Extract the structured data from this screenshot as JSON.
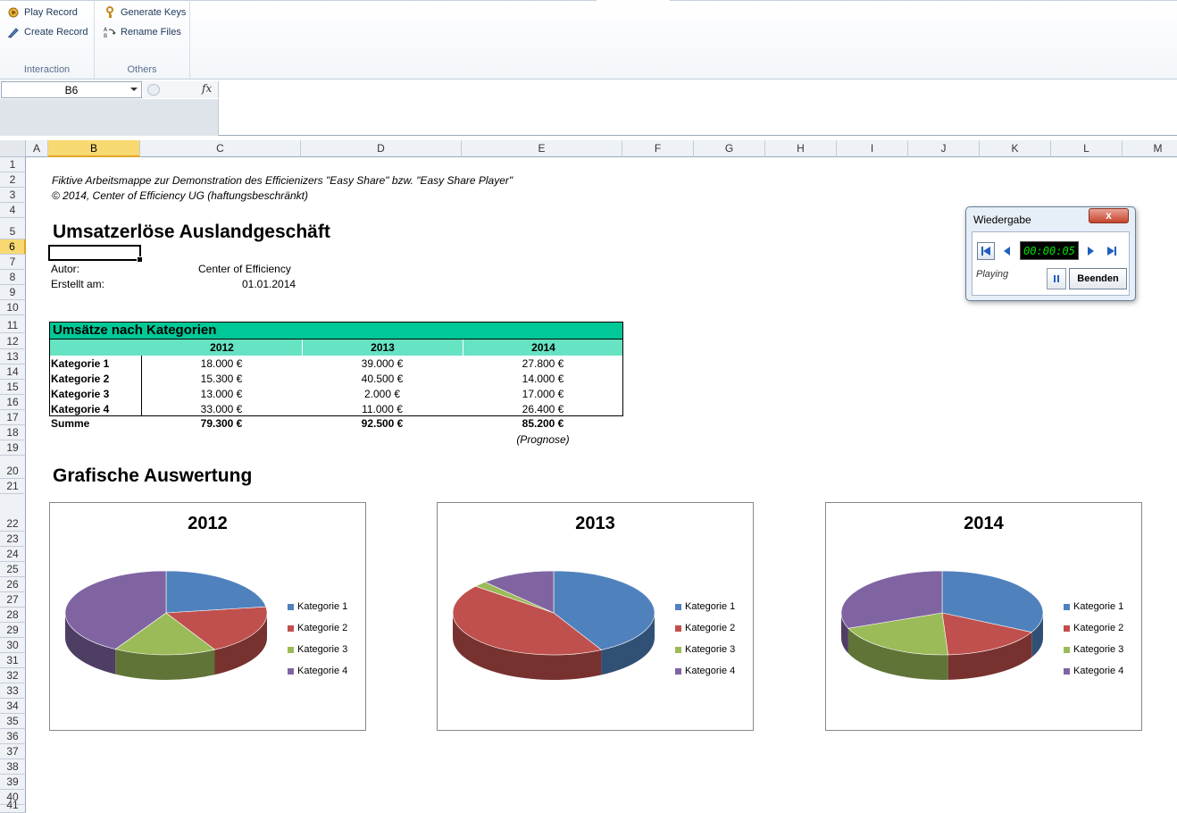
{
  "ribbon": {
    "groups": [
      {
        "label": "Interaction",
        "buttons": [
          {
            "label": "Play Record",
            "icon": "play-record-icon"
          },
          {
            "label": "Create Record",
            "icon": "create-record-icon"
          }
        ]
      },
      {
        "label": "Others",
        "buttons": [
          {
            "label": "Generate Keys",
            "icon": "key-icon"
          },
          {
            "label": "Rename Files",
            "icon": "rename-icon"
          }
        ]
      }
    ]
  },
  "formula_bar": {
    "name_box": "B6",
    "fx": "fx",
    "formula": ""
  },
  "columns": [
    "A",
    "B",
    "C",
    "D",
    "E",
    "F",
    "G",
    "H",
    "I",
    "J",
    "K",
    "L",
    "M"
  ],
  "selected_column": "B",
  "rows": [
    "1",
    "2",
    "3",
    "4",
    "5",
    "6",
    "7",
    "8",
    "9",
    "10",
    "11",
    "12",
    "13",
    "14",
    "15",
    "16",
    "17",
    "18",
    "19",
    "20",
    "21",
    "22",
    "23",
    "24",
    "25",
    "26",
    "27",
    "28",
    "29",
    "30",
    "31",
    "32",
    "33",
    "34",
    "35",
    "36",
    "37",
    "38",
    "39",
    "40",
    "41"
  ],
  "selected_row": "6",
  "sheet": {
    "intro_line1": "Fiktive Arbeitsmappe zur Demonstration des Efficienizers \"Easy Share\" bzw. \"Easy Share Player\"",
    "intro_line2": "© 2014, Center of Efficiency UG (haftungsbeschränkt)",
    "title": "Umsatzerlöse Auslandgeschäft",
    "author_label": "Autor:",
    "author_value": "Center of Efficiency",
    "created_label": "Erstellt am:",
    "created_value": "01.01.2014",
    "table_title": "Umsätze nach Kategorien",
    "years": [
      "2012",
      "2013",
      "2014"
    ],
    "table_rows": [
      {
        "label": "Kategorie 1",
        "values": [
          "18.000 €",
          "39.000 €",
          "27.800 €"
        ]
      },
      {
        "label": "Kategorie 2",
        "values": [
          "15.300 €",
          "40.500 €",
          "14.000 €"
        ]
      },
      {
        "label": "Kategorie 3",
        "values": [
          "13.000 €",
          "2.000 €",
          "17.000 €"
        ]
      },
      {
        "label": "Kategorie 4",
        "values": [
          "33.000 €",
          "11.000 €",
          "26.400 €"
        ]
      }
    ],
    "sum_label": "Summe",
    "sum_values": [
      "79.300 €",
      "92.500 €",
      "85.200 €"
    ],
    "prognosis_note": "(Prognose)",
    "charts_heading": "Grafische Auswertung"
  },
  "chart_data": [
    {
      "type": "pie",
      "title": "2012",
      "categories": [
        "Kategorie 1",
        "Kategorie 2",
        "Kategorie 3",
        "Kategorie 4"
      ],
      "values": [
        18000,
        15300,
        13000,
        33000
      ],
      "colors": [
        "#4f81bd",
        "#c0504d",
        "#9bbb59",
        "#8064a2"
      ],
      "legend": "right"
    },
    {
      "type": "pie",
      "title": "2013",
      "categories": [
        "Kategorie 1",
        "Kategorie 2",
        "Kategorie 3",
        "Kategorie 4"
      ],
      "values": [
        39000,
        40500,
        2000,
        11000
      ],
      "colors": [
        "#4f81bd",
        "#c0504d",
        "#9bbb59",
        "#8064a2"
      ],
      "legend": "right"
    },
    {
      "type": "pie",
      "title": "2014",
      "categories": [
        "Kategorie 1",
        "Kategorie 2",
        "Kategorie 3",
        "Kategorie 4"
      ],
      "values": [
        27800,
        14000,
        17000,
        26400
      ],
      "colors": [
        "#4f81bd",
        "#c0504d",
        "#9bbb59",
        "#8064a2"
      ],
      "legend": "right"
    }
  ],
  "player": {
    "title": "Wiedergabe",
    "close": "x",
    "timer": "00:00:05",
    "status": "Playing",
    "stop_label": "Beenden"
  }
}
